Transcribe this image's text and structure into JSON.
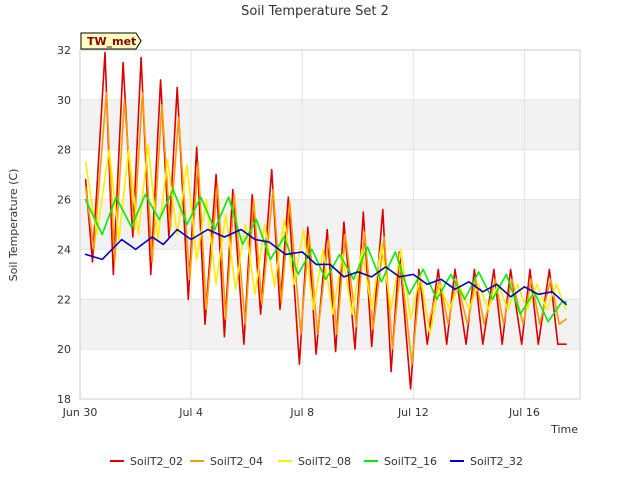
{
  "chart_data": {
    "type": "line",
    "title": "Soil Temperature Set 2",
    "xlabel": "Time",
    "ylabel": "Soil Temperature (C)",
    "badge": "TW_met",
    "ylim": [
      18,
      32
    ],
    "yticks": [
      18,
      20,
      22,
      24,
      26,
      28,
      30,
      32
    ],
    "x_domain": [
      "Jun 30",
      "Jul 18"
    ],
    "xticks": [
      {
        "label": "Jun 30",
        "day": 0
      },
      {
        "label": "Jul 4",
        "day": 4
      },
      {
        "label": "Jul 8",
        "day": 8
      },
      {
        "label": "Jul 12",
        "day": 12
      },
      {
        "label": "Jul 16",
        "day": 16
      }
    ],
    "grid": true,
    "shaded_bands": [
      [
        20,
        22
      ],
      [
        24,
        26
      ],
      [
        28,
        30
      ]
    ],
    "legend_position": "bottom",
    "series": [
      {
        "name": "SoilT2_02",
        "color": "#dd0000",
        "x": [
          0.2,
          0.45,
          0.9,
          1.2,
          1.55,
          1.9,
          2.2,
          2.55,
          2.9,
          3.2,
          3.5,
          3.9,
          4.2,
          4.5,
          4.9,
          5.2,
          5.5,
          5.9,
          6.2,
          6.5,
          6.9,
          7.2,
          7.5,
          7.9,
          8.2,
          8.5,
          8.9,
          9.2,
          9.5,
          9.9,
          10.2,
          10.5,
          10.9,
          11.2,
          11.5,
          11.9,
          12.2,
          12.5,
          12.9,
          13.2,
          13.5,
          13.9,
          14.2,
          14.5,
          14.9,
          15.2,
          15.5,
          15.9,
          16.2,
          16.5,
          16.9,
          17.2,
          17.5
        ],
        "y": [
          26.8,
          23.5,
          31.9,
          23.0,
          31.5,
          24.5,
          31.7,
          23.0,
          30.8,
          24.5,
          30.5,
          22.0,
          28.1,
          21.0,
          27.0,
          20.5,
          26.4,
          20.2,
          26.2,
          21.4,
          27.2,
          21.6,
          26.1,
          19.4,
          24.9,
          19.8,
          24.8,
          19.9,
          25.1,
          20.0,
          25.5,
          20.1,
          25.6,
          19.1,
          23.9,
          18.4,
          23.2,
          20.2,
          23.2,
          20.2,
          23.2,
          20.2,
          23.2,
          20.2,
          23.2,
          20.2,
          23.2,
          20.2,
          23.2,
          20.2,
          23.2,
          20.2,
          20.2
        ]
      },
      {
        "name": "SoilT2_04",
        "color": "#ff9900",
        "x": [
          0.2,
          0.5,
          0.95,
          1.25,
          1.6,
          1.95,
          2.25,
          2.6,
          2.95,
          3.25,
          3.55,
          3.95,
          4.25,
          4.55,
          4.95,
          5.25,
          5.55,
          5.95,
          6.25,
          6.55,
          6.95,
          7.25,
          7.55,
          7.95,
          8.25,
          8.55,
          8.95,
          9.25,
          9.55,
          9.95,
          10.25,
          10.55,
          10.95,
          11.25,
          11.55,
          11.95,
          12.25,
          12.55,
          12.95,
          13.25,
          13.55,
          13.95,
          14.25,
          14.55,
          14.95,
          15.25,
          15.55,
          15.95,
          16.25,
          16.55,
          16.95,
          17.25,
          17.5
        ],
        "y": [
          26.5,
          24.0,
          30.3,
          23.5,
          30.0,
          24.8,
          30.3,
          23.5,
          29.8,
          24.8,
          29.3,
          22.8,
          27.5,
          21.6,
          26.6,
          21.2,
          26.2,
          21.0,
          26.0,
          21.8,
          26.4,
          21.9,
          25.9,
          20.6,
          24.6,
          20.6,
          24.4,
          20.6,
          24.6,
          20.9,
          24.7,
          20.8,
          24.5,
          20.0,
          23.4,
          19.4,
          22.8,
          21.0,
          22.8,
          21.0,
          22.8,
          21.0,
          22.8,
          21.0,
          22.8,
          21.0,
          22.8,
          21.0,
          22.8,
          21.0,
          22.8,
          21.0,
          21.2
        ]
      },
      {
        "name": "SoilT2_08",
        "color": "#ffee00",
        "x": [
          0.2,
          0.6,
          1.05,
          1.4,
          1.75,
          2.1,
          2.45,
          2.8,
          3.15,
          3.5,
          3.85,
          4.2,
          4.55,
          4.9,
          5.25,
          5.6,
          5.95,
          6.3,
          6.65,
          7.0,
          7.35,
          7.7,
          8.05,
          8.4,
          8.75,
          9.1,
          9.45,
          9.8,
          10.15,
          10.5,
          10.85,
          11.2,
          11.55,
          11.9,
          12.25,
          12.6,
          12.95,
          13.3,
          13.65,
          14.0,
          14.35,
          14.7,
          15.05,
          15.4,
          15.75,
          16.1,
          16.45,
          16.8,
          17.15,
          17.5
        ],
        "y": [
          27.5,
          24.6,
          28.0,
          24.4,
          28.0,
          24.6,
          28.2,
          24.4,
          27.6,
          24.6,
          27.4,
          23.6,
          26.0,
          22.6,
          25.4,
          22.4,
          25.0,
          22.2,
          25.0,
          22.5,
          25.2,
          22.6,
          24.8,
          21.6,
          24.0,
          21.4,
          23.8,
          21.4,
          24.0,
          21.6,
          24.2,
          21.6,
          24.0,
          21.2,
          23.0,
          20.6,
          22.6,
          21.6,
          22.6,
          21.6,
          22.6,
          21.6,
          22.6,
          21.6,
          22.6,
          21.6,
          22.6,
          21.6,
          22.6,
          21.6
        ]
      },
      {
        "name": "SoilT2_16",
        "color": "#00ee00",
        "x": [
          0.2,
          0.8,
          1.3,
          1.85,
          2.35,
          2.85,
          3.35,
          3.85,
          4.35,
          4.85,
          5.35,
          5.85,
          6.35,
          6.85,
          7.35,
          7.85,
          8.35,
          8.85,
          9.35,
          9.85,
          10.35,
          10.85,
          11.35,
          11.85,
          12.35,
          12.85,
          13.35,
          13.85,
          14.35,
          14.85,
          15.35,
          15.85,
          16.35,
          16.85,
          17.35,
          17.5
        ],
        "y": [
          26.0,
          24.6,
          26.1,
          24.9,
          26.2,
          25.2,
          26.4,
          25.0,
          26.1,
          24.8,
          26.1,
          24.2,
          25.2,
          23.6,
          24.5,
          23.0,
          24.0,
          22.8,
          23.8,
          22.8,
          24.1,
          22.7,
          23.9,
          22.2,
          23.2,
          22.0,
          23.0,
          22.0,
          23.1,
          22.0,
          23.0,
          21.4,
          22.3,
          21.1,
          21.9,
          21.9
        ]
      },
      {
        "name": "SoilT2_32",
        "color": "#0000cc",
        "x": [
          0.2,
          0.8,
          1.5,
          2.0,
          2.6,
          3.0,
          3.5,
          4.0,
          4.6,
          5.2,
          5.8,
          6.3,
          6.8,
          7.4,
          8.0,
          8.5,
          9.0,
          9.5,
          10.0,
          10.5,
          11.0,
          11.5,
          12.0,
          12.5,
          13.0,
          13.5,
          14.0,
          14.5,
          15.0,
          15.5,
          16.0,
          16.5,
          17.0,
          17.5
        ],
        "y": [
          23.8,
          23.6,
          24.4,
          24.0,
          24.5,
          24.2,
          24.8,
          24.4,
          24.8,
          24.5,
          24.8,
          24.4,
          24.3,
          23.8,
          23.9,
          23.4,
          23.4,
          22.9,
          23.1,
          22.9,
          23.3,
          22.9,
          23.0,
          22.6,
          22.8,
          22.4,
          22.7,
          22.3,
          22.6,
          22.1,
          22.5,
          22.2,
          22.3,
          21.8
        ]
      }
    ]
  }
}
